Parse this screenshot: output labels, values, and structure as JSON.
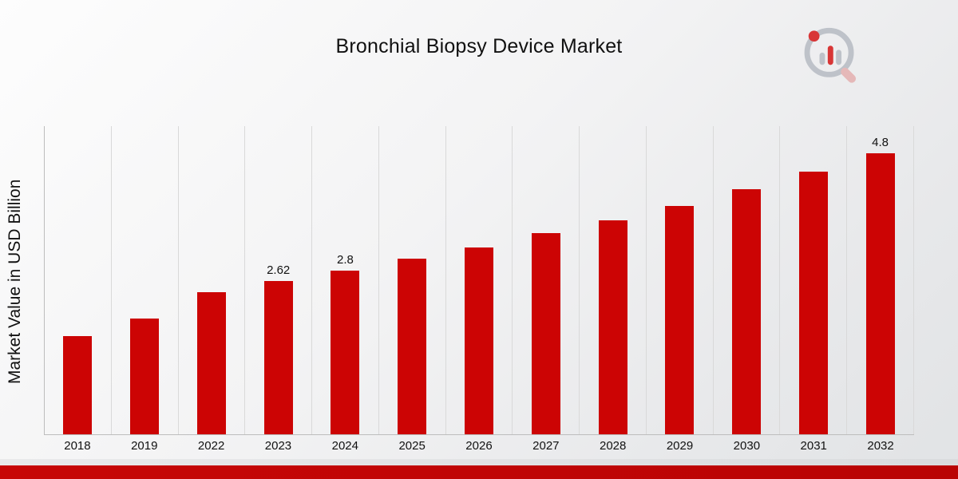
{
  "title": "Bronchial Biopsy Device Market",
  "ylabel": "Market Value in USD Billion",
  "colors": {
    "bar": "#CC0404",
    "footer_stripe": "#C10505",
    "gridline": "#D9D9D9"
  },
  "logo": {
    "name": "market-research-brand-logo"
  },
  "chart_data": {
    "type": "bar",
    "title": "Bronchial Biopsy Device Market",
    "xlabel": "",
    "ylabel": "Market Value in USD Billion",
    "categories": [
      "2018",
      "2019",
      "2022",
      "2023",
      "2024",
      "2025",
      "2026",
      "2027",
      "2028",
      "2029",
      "2030",
      "2031",
      "2032"
    ],
    "values": [
      1.68,
      1.98,
      2.43,
      2.62,
      2.8,
      3.0,
      3.2,
      3.44,
      3.66,
      3.9,
      4.19,
      4.49,
      4.8
    ],
    "data_labels": [
      "",
      "",
      "",
      "2.62",
      "2.8",
      "",
      "",
      "",
      "",
      "",
      "",
      "",
      "4.8"
    ],
    "bar_color": "#CC0404",
    "ylim": [
      0,
      5.27
    ],
    "grid": "vertical-only",
    "legend": "none"
  }
}
